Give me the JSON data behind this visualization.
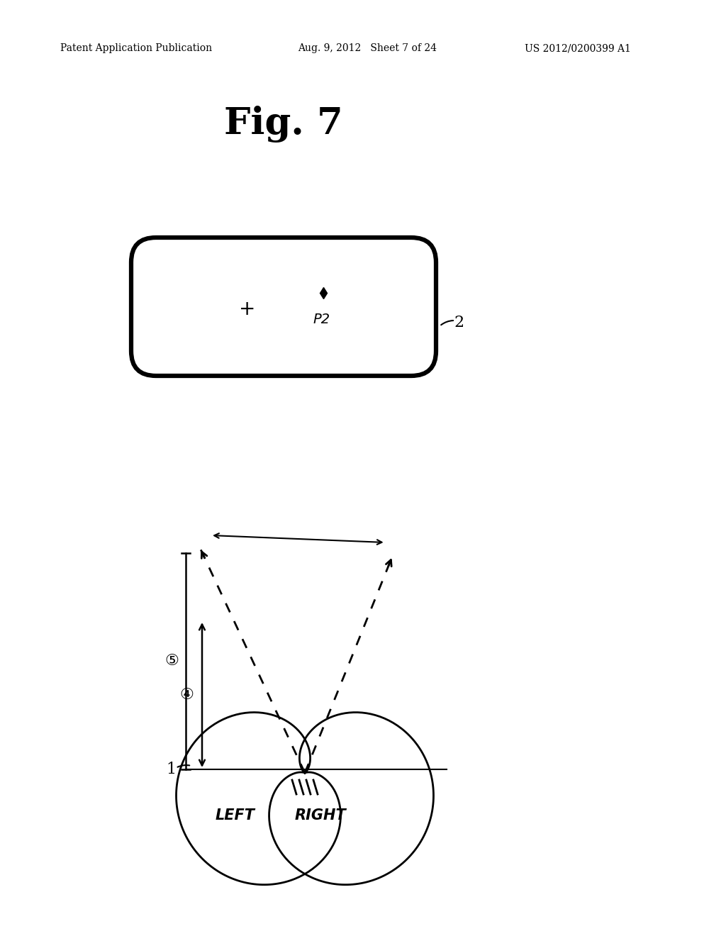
{
  "bg_color": "#ffffff",
  "text_color": "#000000",
  "header_left": "Patent Application Publication",
  "header_mid": "Aug. 9, 2012   Sheet 7 of 24",
  "header_right": "US 2012/0200399 A1",
  "fig_title": "Fig. 7",
  "label_2": "2",
  "label_1": "1",
  "label_left": "LEFT",
  "label_right": "RIGHT",
  "label_p2": "P2",
  "circled_3": "④",
  "circled_4": "⑤"
}
